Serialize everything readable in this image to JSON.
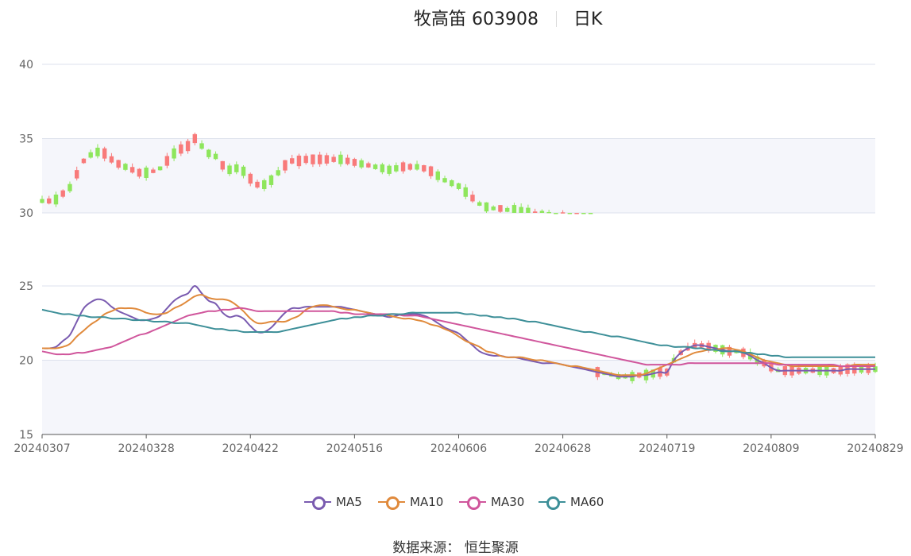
{
  "header": {
    "title": "牧高笛 603908",
    "subtitle": "日K"
  },
  "source_label": "数据来源： 恒生聚源",
  "colors": {
    "up": "#f87a7a",
    "down": "#8ee65c",
    "grid": "#dde1ec",
    "band": "#f5f6fb",
    "axis": "#555555"
  },
  "chart_data": {
    "type": "candlestick",
    "panes": [
      {
        "name": "price",
        "ylim": [
          30,
          40
        ],
        "yticks": [
          30,
          35,
          40
        ]
      },
      {
        "name": "moving_averages",
        "ylim": [
          15,
          25
        ],
        "yticks": [
          15,
          20,
          25
        ]
      }
    ],
    "x_tick_labels": [
      "20240307",
      "20240328",
      "20240422",
      "20240516",
      "20240606",
      "20240628",
      "20240719",
      "20240809",
      "20240829"
    ],
    "x_tick_indices": [
      0,
      15,
      30,
      45,
      60,
      75,
      90,
      105,
      120
    ],
    "candles_count": 121,
    "series": [
      {
        "name": "MA5",
        "color": "#7a5bb0",
        "values": [
          20.8,
          20.8,
          20.9,
          21.3,
          21.7,
          22.6,
          23.5,
          23.9,
          24.1,
          24.0,
          23.6,
          23.3,
          23.1,
          22.9,
          22.7,
          22.7,
          22.8,
          23.0,
          23.5,
          24.0,
          24.3,
          24.5,
          25.0,
          24.5,
          24.0,
          23.8,
          23.2,
          22.9,
          23.0,
          22.8,
          22.3,
          21.9,
          21.9,
          22.2,
          22.7,
          23.2,
          23.5,
          23.5,
          23.6,
          23.6,
          23.6,
          23.6,
          23.6,
          23.6,
          23.5,
          23.4,
          23.3,
          23.2,
          23.1,
          23.0,
          22.9,
          23.0,
          23.1,
          23.1,
          23.1,
          23.0,
          22.8,
          22.5,
          22.2,
          22.0,
          21.8,
          21.4,
          21.0,
          20.6,
          20.4,
          20.3,
          20.3,
          20.2,
          20.2,
          20.1,
          20.0,
          19.9,
          19.8,
          19.8,
          19.8,
          19.7,
          19.6,
          19.5,
          19.4,
          19.3,
          19.2,
          19.1,
          19.0,
          18.9,
          18.9,
          18.9,
          19.0,
          19.0,
          19.1,
          19.2,
          19.2,
          20.0,
          20.5,
          20.8,
          21.0,
          21.0,
          20.9,
          20.8,
          20.7,
          20.6,
          20.6,
          20.5,
          20.3,
          20.0,
          19.8,
          19.5,
          19.3,
          19.3,
          19.3,
          19.3,
          19.3,
          19.3,
          19.3,
          19.3,
          19.3,
          19.3,
          19.4,
          19.4,
          19.4,
          19.4,
          19.4
        ]
      },
      {
        "name": "MA10",
        "color": "#e08a3c",
        "values": [
          20.8,
          20.8,
          20.8,
          20.9,
          21.1,
          21.6,
          22.0,
          22.4,
          22.7,
          23.1,
          23.3,
          23.5,
          23.5,
          23.5,
          23.4,
          23.2,
          23.1,
          23.1,
          23.2,
          23.5,
          23.7,
          24.0,
          24.3,
          24.4,
          24.2,
          24.1,
          24.1,
          24.0,
          23.7,
          23.3,
          22.8,
          22.5,
          22.5,
          22.6,
          22.6,
          22.6,
          22.8,
          23.0,
          23.4,
          23.6,
          23.7,
          23.7,
          23.6,
          23.5,
          23.4,
          23.4,
          23.3,
          23.2,
          23.1,
          23.1,
          23.0,
          22.9,
          22.8,
          22.8,
          22.7,
          22.6,
          22.4,
          22.3,
          22.1,
          21.9,
          21.6,
          21.3,
          21.1,
          20.9,
          20.6,
          20.5,
          20.3,
          20.2,
          20.2,
          20.2,
          20.1,
          20.0,
          20.0,
          19.9,
          19.8,
          19.7,
          19.6,
          19.6,
          19.5,
          19.4,
          19.3,
          19.2,
          19.1,
          19.0,
          19.0,
          19.0,
          19.0,
          19.1,
          19.3,
          19.5,
          19.7,
          19.9,
          20.1,
          20.3,
          20.5,
          20.6,
          20.7,
          20.7,
          20.8,
          20.8,
          20.7,
          20.6,
          20.4,
          20.2,
          20.0,
          19.9,
          19.8,
          19.7,
          19.6,
          19.6,
          19.6,
          19.6,
          19.6,
          19.6,
          19.6,
          19.6,
          19.6,
          19.7,
          19.7,
          19.7,
          19.7
        ]
      },
      {
        "name": "MA30",
        "color": "#d0569c",
        "values": [
          20.6,
          20.5,
          20.4,
          20.4,
          20.4,
          20.5,
          20.5,
          20.6,
          20.7,
          20.8,
          20.9,
          21.1,
          21.3,
          21.5,
          21.7,
          21.8,
          22.0,
          22.2,
          22.4,
          22.6,
          22.8,
          23.0,
          23.1,
          23.2,
          23.3,
          23.3,
          23.4,
          23.4,
          23.5,
          23.5,
          23.4,
          23.3,
          23.3,
          23.3,
          23.3,
          23.3,
          23.3,
          23.3,
          23.3,
          23.3,
          23.3,
          23.3,
          23.3,
          23.2,
          23.2,
          23.1,
          23.1,
          23.1,
          23.1,
          23.1,
          23.1,
          23.1,
          23.0,
          23.0,
          23.0,
          22.9,
          22.8,
          22.7,
          22.6,
          22.5,
          22.4,
          22.3,
          22.2,
          22.1,
          22.0,
          21.9,
          21.8,
          21.7,
          21.6,
          21.5,
          21.4,
          21.3,
          21.2,
          21.1,
          21.0,
          20.9,
          20.8,
          20.7,
          20.6,
          20.5,
          20.4,
          20.3,
          20.2,
          20.1,
          20.0,
          19.9,
          19.8,
          19.7,
          19.7,
          19.7,
          19.7,
          19.7,
          19.7,
          19.8,
          19.8,
          19.8,
          19.8,
          19.8,
          19.8,
          19.8,
          19.8,
          19.8,
          19.8,
          19.8,
          19.8,
          19.8,
          19.7,
          19.7,
          19.7,
          19.7,
          19.7,
          19.7,
          19.7,
          19.7,
          19.7,
          19.6,
          19.6,
          19.6,
          19.6,
          19.6,
          19.6
        ]
      },
      {
        "name": "MA60",
        "color": "#3d8f98",
        "values": [
          23.4,
          23.3,
          23.2,
          23.1,
          23.1,
          23.0,
          23.0,
          22.9,
          22.9,
          22.9,
          22.8,
          22.8,
          22.8,
          22.7,
          22.7,
          22.7,
          22.6,
          22.6,
          22.6,
          22.5,
          22.5,
          22.5,
          22.4,
          22.3,
          22.2,
          22.1,
          22.1,
          22.0,
          22.0,
          21.9,
          21.9,
          21.9,
          21.9,
          21.9,
          21.9,
          22.0,
          22.1,
          22.2,
          22.3,
          22.4,
          22.5,
          22.6,
          22.7,
          22.8,
          22.8,
          22.9,
          22.9,
          23.0,
          23.0,
          23.0,
          23.1,
          23.1,
          23.1,
          23.2,
          23.2,
          23.2,
          23.2,
          23.2,
          23.2,
          23.2,
          23.2,
          23.1,
          23.1,
          23.0,
          23.0,
          22.9,
          22.9,
          22.8,
          22.8,
          22.7,
          22.6,
          22.6,
          22.5,
          22.4,
          22.3,
          22.2,
          22.1,
          22.0,
          21.9,
          21.9,
          21.8,
          21.7,
          21.6,
          21.6,
          21.5,
          21.4,
          21.3,
          21.2,
          21.1,
          21.0,
          21.0,
          20.9,
          20.9,
          20.9,
          20.8,
          20.8,
          20.7,
          20.7,
          20.6,
          20.6,
          20.6,
          20.5,
          20.5,
          20.4,
          20.4,
          20.3,
          20.3,
          20.2,
          20.2,
          20.2,
          20.2,
          20.2,
          20.2,
          20.2,
          20.2,
          20.2,
          20.2,
          20.2,
          20.2,
          20.2,
          20.2
        ]
      }
    ],
    "legend_position": "bottom-center",
    "grid": true
  }
}
